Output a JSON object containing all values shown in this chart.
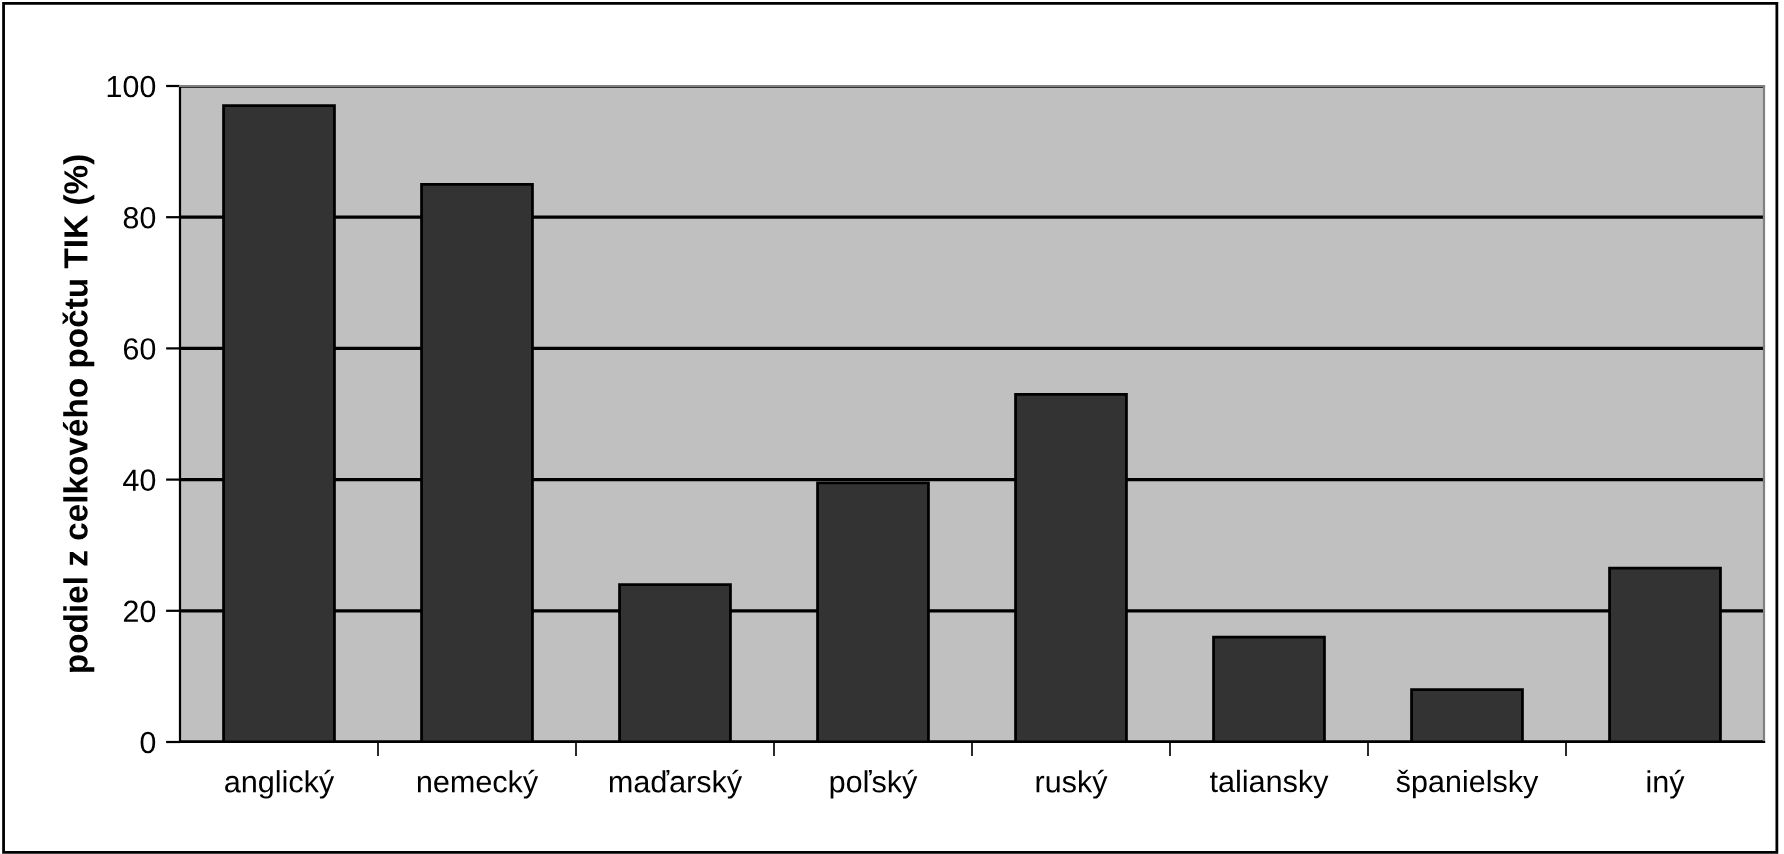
{
  "chart_data": {
    "type": "bar",
    "ylabel": "podiel z celkového počtu TIK (%)",
    "categories": [
      "anglický",
      "nemecký",
      "maďarský",
      "poľský",
      "ruský",
      "taliansky",
      "španielsky",
      "iný"
    ],
    "values": [
      97,
      85,
      24,
      39.5,
      53,
      16,
      8,
      26.5
    ],
    "color": "#333333",
    "ylim": [
      0,
      100
    ],
    "yticks": [
      0,
      20,
      40,
      60,
      80,
      100
    ],
    "grid": "y",
    "legend": false
  }
}
